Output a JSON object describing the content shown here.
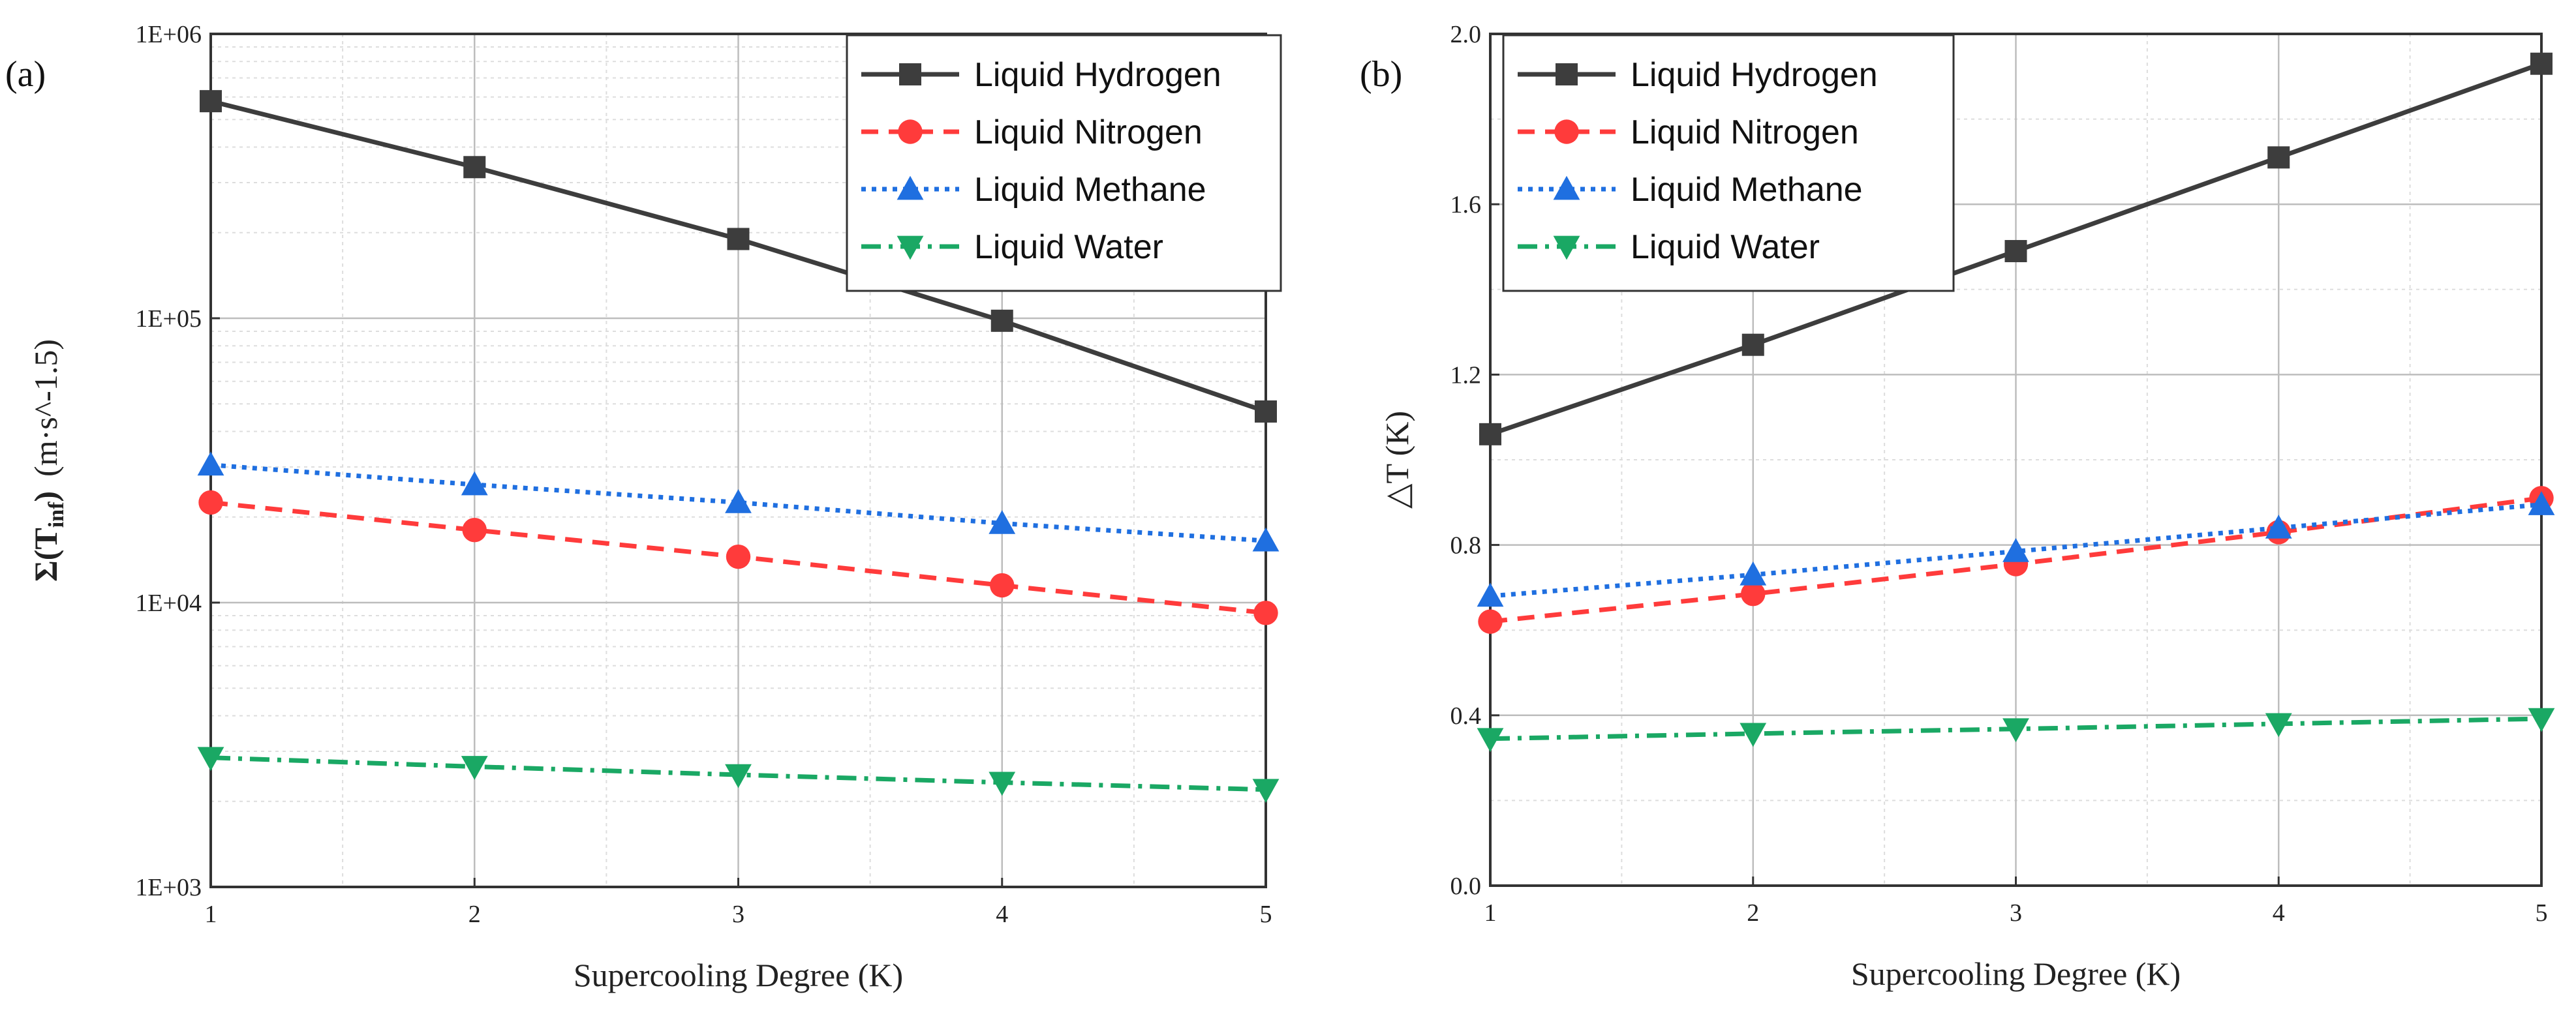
{
  "chart_data": [
    {
      "type": "line",
      "panel_label": "(a)",
      "x": [
        1,
        2,
        3,
        4,
        5
      ],
      "xlim": [
        1,
        5
      ],
      "xticks": [
        "1",
        "2",
        "3",
        "4",
        "5"
      ],
      "xlabel": "Supercooling Degree (K)",
      "ylabel_main": "Σ(T",
      "ylabel_sub": "inf",
      "ylabel_rest": ")",
      "ylabel_units": "(m·s^-1.5)",
      "yscale": "log",
      "ylim": [
        1000,
        1000000
      ],
      "yticks": [
        {
          "value": 1000,
          "label": "1E+03"
        },
        {
          "value": 10000,
          "label": "1E+04"
        },
        {
          "value": 100000,
          "label": "1E+05"
        },
        {
          "value": 1000000,
          "label": "1E+06"
        }
      ],
      "grid": true,
      "legend_position": "top-right",
      "series": [
        {
          "name": "Liquid Hydrogen",
          "color": "#3d3d3d",
          "dash": "solid",
          "marker": "square",
          "values": [
            580000,
            340000,
            190000,
            98000,
            47000
          ]
        },
        {
          "name": "Liquid Nitrogen",
          "color": "#ff3b3b",
          "dash": "dashed",
          "marker": "circle",
          "values": [
            22500,
            18000,
            14500,
            11500,
            9200
          ]
        },
        {
          "name": "Liquid Methane",
          "color": "#1f6fe0",
          "dash": "dotted",
          "marker": "triangle-up",
          "values": [
            30500,
            26000,
            22500,
            19000,
            16500
          ]
        },
        {
          "name": "Liquid Water",
          "color": "#1aa864",
          "dash": "dashdot",
          "marker": "triangle-down",
          "values": [
            2850,
            2650,
            2480,
            2330,
            2200
          ]
        }
      ]
    },
    {
      "type": "line",
      "panel_label": "(b)",
      "x": [
        1,
        2,
        3,
        4,
        5
      ],
      "xlim": [
        1,
        5
      ],
      "xticks": [
        "1",
        "2",
        "3",
        "4",
        "5"
      ],
      "xlabel": "Supercooling Degree (K)",
      "ylabel": "△T (K)",
      "yscale": "linear",
      "ylim": [
        0,
        2.0
      ],
      "yticks": [
        {
          "value": 0,
          "label": "0.0"
        },
        {
          "value": 0.4,
          "label": "0.4"
        },
        {
          "value": 0.8,
          "label": "0.8"
        },
        {
          "value": 1.2,
          "label": "1.2"
        },
        {
          "value": 1.6,
          "label": "1.6"
        },
        {
          "value": 2.0,
          "label": "2.0"
        }
      ],
      "grid": true,
      "legend_position": "top-left",
      "series": [
        {
          "name": "Liquid Hydrogen",
          "color": "#3d3d3d",
          "dash": "solid",
          "marker": "square",
          "values": [
            1.06,
            1.27,
            1.49,
            1.71,
            1.93
          ]
        },
        {
          "name": "Liquid Nitrogen",
          "color": "#ff3b3b",
          "dash": "dashed",
          "marker": "circle",
          "values": [
            0.62,
            0.685,
            0.755,
            0.83,
            0.91
          ]
        },
        {
          "name": "Liquid Methane",
          "color": "#1f6fe0",
          "dash": "dotted",
          "marker": "triangle-up",
          "values": [
            0.68,
            0.73,
            0.785,
            0.84,
            0.895
          ]
        },
        {
          "name": "Liquid Water",
          "color": "#1aa864",
          "dash": "dashdot",
          "marker": "triangle-down",
          "values": [
            0.345,
            0.357,
            0.368,
            0.38,
            0.392
          ]
        }
      ]
    }
  ]
}
